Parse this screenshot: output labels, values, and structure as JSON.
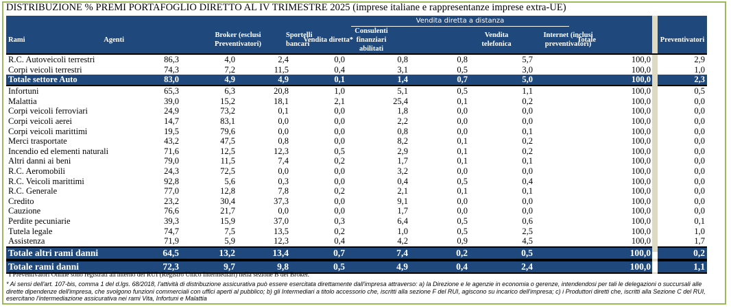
{
  "title": "DISTRIBUZIONE % PREMI PORTAFOGLIO DIRETTO AL IV TRIMESTRE 2025 (imprese italiane e rappresentanze imprese extra-UE)",
  "header": {
    "group_label": "Vendita diretta a distanza",
    "columns": [
      {
        "key": "rami",
        "label": [
          "Rami"
        ]
      },
      {
        "key": "agenti",
        "label": [
          "Agenti"
        ]
      },
      {
        "key": "broker",
        "label": [
          "Broker (esclusi",
          "Preventivatori)"
        ]
      },
      {
        "key": "sportelli",
        "label": [
          "Sportelli",
          "bancari"
        ]
      },
      {
        "key": "consulenti",
        "label": [
          "Consulenti",
          "finanziari",
          "abilitati"
        ]
      },
      {
        "key": "vendita_diretta",
        "label": [
          "Vendita diretta*"
        ]
      },
      {
        "key": "vendita_telefonica",
        "label": [
          "Vendita",
          "telefonica"
        ]
      },
      {
        "key": "internet",
        "label": [
          "Internet (inclusi",
          "preventivatori)"
        ]
      },
      {
        "key": "totale",
        "label": [
          "Totale"
        ]
      },
      {
        "key": "preventivatori",
        "label": [
          "Preventivatori"
        ]
      }
    ]
  },
  "rows": [
    {
      "name": "R.C. Autoveicoli terrestri",
      "values": [
        "86,3",
        "4,0",
        "2,4",
        "0,0",
        "0,8",
        "0,8",
        "5,7",
        "100,0",
        "2,9"
      ],
      "total": false
    },
    {
      "name": "Corpi veicoli terrestri",
      "values": [
        "74,3",
        "7,2",
        "11,5",
        "0,4",
        "3,1",
        "0,5",
        "3,0",
        "100,0",
        "1,0"
      ],
      "total": false
    },
    {
      "name": "Totale settore Auto",
      "values": [
        "83,0",
        "4,9",
        "4,9",
        "0,1",
        "1,4",
        "0,7",
        "5,0",
        "100,0",
        "2,3"
      ],
      "total": true
    },
    {
      "name": "Infortuni",
      "values": [
        "65,3",
        "6,3",
        "20,8",
        "1,0",
        "5,1",
        "0,5",
        "1,1",
        "100,0",
        "0,5"
      ],
      "total": false
    },
    {
      "name": "Malattia",
      "values": [
        "39,0",
        "15,2",
        "18,1",
        "2,1",
        "25,4",
        "0,1",
        "0,2",
        "100,0",
        "0,0"
      ],
      "total": false
    },
    {
      "name": "Corpi veicoli ferroviari",
      "values": [
        "24,9",
        "73,2",
        "0,1",
        "0,0",
        "1,8",
        "0,0",
        "0,0",
        "100,0",
        "0,0"
      ],
      "total": false
    },
    {
      "name": "Corpi veicoli aerei",
      "values": [
        "14,7",
        "83,1",
        "0,0",
        "0,0",
        "2,2",
        "0,0",
        "0,0",
        "100,0",
        "0,0"
      ],
      "total": false
    },
    {
      "name": "Corpi veicoli marittimi",
      "values": [
        "19,5",
        "79,6",
        "0,0",
        "0,0",
        "0,8",
        "0,0",
        "0,1",
        "100,0",
        "0,0"
      ],
      "total": false
    },
    {
      "name": "Merci trasportate",
      "values": [
        "43,2",
        "47,5",
        "0,8",
        "0,0",
        "8,2",
        "0,1",
        "0,2",
        "100,0",
        "0,0"
      ],
      "total": false
    },
    {
      "name": "Incendio ed elementi naturali",
      "values": [
        "71,6",
        "12,5",
        "12,3",
        "0,5",
        "2,9",
        "0,1",
        "0,2",
        "100,0",
        "0,0"
      ],
      "total": false
    },
    {
      "name": "Altri danni ai beni",
      "values": [
        "79,0",
        "11,5",
        "7,4",
        "0,2",
        "1,7",
        "0,1",
        "0,1",
        "100,0",
        "0,0"
      ],
      "total": false
    },
    {
      "name": "R.C. Aeromobili",
      "values": [
        "24,3",
        "72,5",
        "0,0",
        "0,0",
        "3,2",
        "0,0",
        "0,0",
        "100,0",
        "0,0"
      ],
      "total": false
    },
    {
      "name": "R.C. Veicoli marittimi",
      "values": [
        "92,8",
        "5,6",
        "0,3",
        "0,0",
        "0,4",
        "0,5",
        "0,4",
        "100,0",
        "0,0"
      ],
      "total": false
    },
    {
      "name": "R.C. Generale",
      "values": [
        "77,0",
        "12,8",
        "7,8",
        "0,2",
        "2,1",
        "0,1",
        "0,1",
        "100,0",
        "0,0"
      ],
      "total": false
    },
    {
      "name": "Credito",
      "values": [
        "23,2",
        "30,4",
        "37,3",
        "0,0",
        "9,1",
        "0,0",
        "0,0",
        "100,0",
        "0,0"
      ],
      "total": false
    },
    {
      "name": "Cauzione",
      "values": [
        "76,6",
        "21,7",
        "0,0",
        "0,0",
        "1,7",
        "0,0",
        "0,0",
        "100,0",
        "0,0"
      ],
      "total": false
    },
    {
      "name": "Perdite pecuniarie",
      "values": [
        "39,3",
        "15,9",
        "37,0",
        "0,3",
        "6,4",
        "0,5",
        "0,6",
        "100,0",
        "0,1"
      ],
      "total": false
    },
    {
      "name": "Tutela legale",
      "values": [
        "74,7",
        "7,5",
        "13,5",
        "0,2",
        "1,0",
        "0,5",
        "2,5",
        "100,0",
        "1,0"
      ],
      "total": false
    },
    {
      "name": "Assistenza",
      "values": [
        "71,9",
        "5,9",
        "12,3",
        "0,4",
        "4,2",
        "0,9",
        "4,5",
        "100,0",
        "1,7"
      ],
      "total": false
    },
    {
      "name": "Totale altri rami danni",
      "values": [
        "64,5",
        "13,2",
        "13,4",
        "0,7",
        "7,4",
        "0,2",
        "0,5",
        "100,0",
        "0,2"
      ],
      "total": true
    },
    {
      "name": "Totale rami danni",
      "values": [
        "72,3",
        "9,7",
        "9,8",
        "0,5",
        "4,9",
        "0,4",
        "2,4",
        "100,0",
        "1,1"
      ],
      "total": true
    }
  ],
  "footnotes": {
    "note1": "I Preventivatori Online sono registrati all'interno del RUI (Registro Unico Intermediari) nella sezione B dei Broker.",
    "note2": "* Ai sensi dell'art. 107-bis, comma 1 del d.lgs. 68/2018, l'attività di distribuzione assicurativa può essere esercitata direttamente dall'impresa attraverso: a) la Direzione e le agenzie in economia o gerenze, intendendosi per tali le delegazioni o succursali alle dirette dipendenze dell'impresa, che svolgono funzioni commerciali con uffici aperti al pubblico; b) gli Intermediari a titolo accessorio che, iscritti alla sezione F del RUI, agiscono su incarico dell'impresa; c) i Produttori diretti che, iscritti alla Sezione C del RUI, esercitano l'intermediazione assicurativa nei rami Vita, Infortuni e Malattia"
  },
  "colors": {
    "header_bg": "#1f497d",
    "separator": "#ddd9c3",
    "frame": "#9bbb59"
  }
}
